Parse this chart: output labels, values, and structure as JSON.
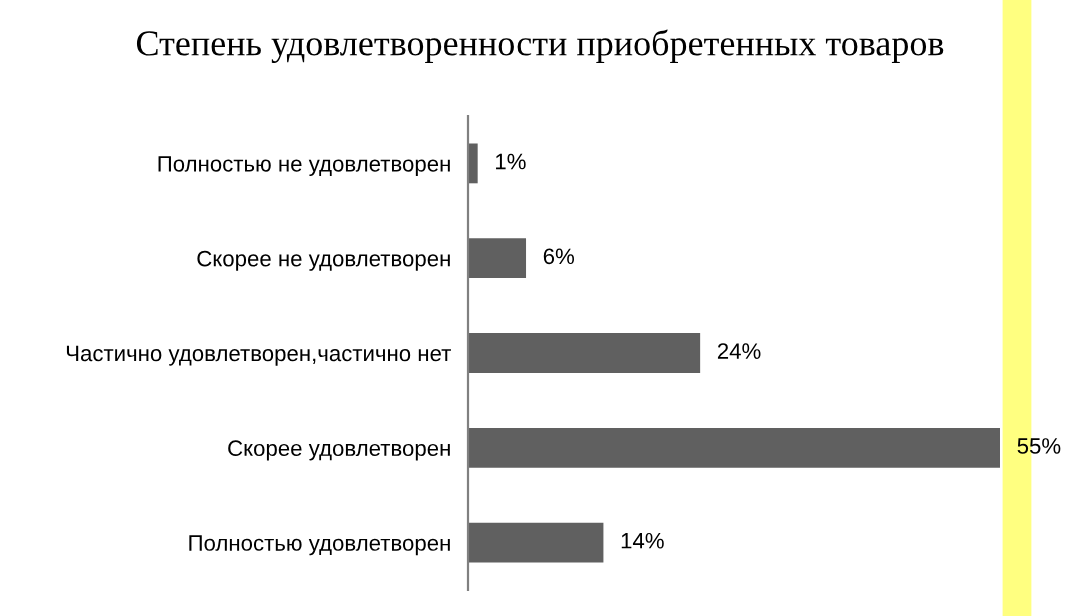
{
  "chart_data": {
    "type": "bar",
    "orientation": "horizontal",
    "title": "Степень удовлетворенности приобретенных товаров",
    "categories": [
      "Полностью не удовлетворен",
      "Скорее не удовлетворен",
      "Частично удовлетворен,частично нет",
      "Скорее удовлетворен",
      "Полностью удовлетворен"
    ],
    "values": [
      1,
      6,
      24,
      55,
      14
    ],
    "value_labels": [
      "1%",
      "6%",
      "24%",
      "55%",
      "14%"
    ],
    "color": "#606060",
    "grid": false,
    "legend": false
  }
}
